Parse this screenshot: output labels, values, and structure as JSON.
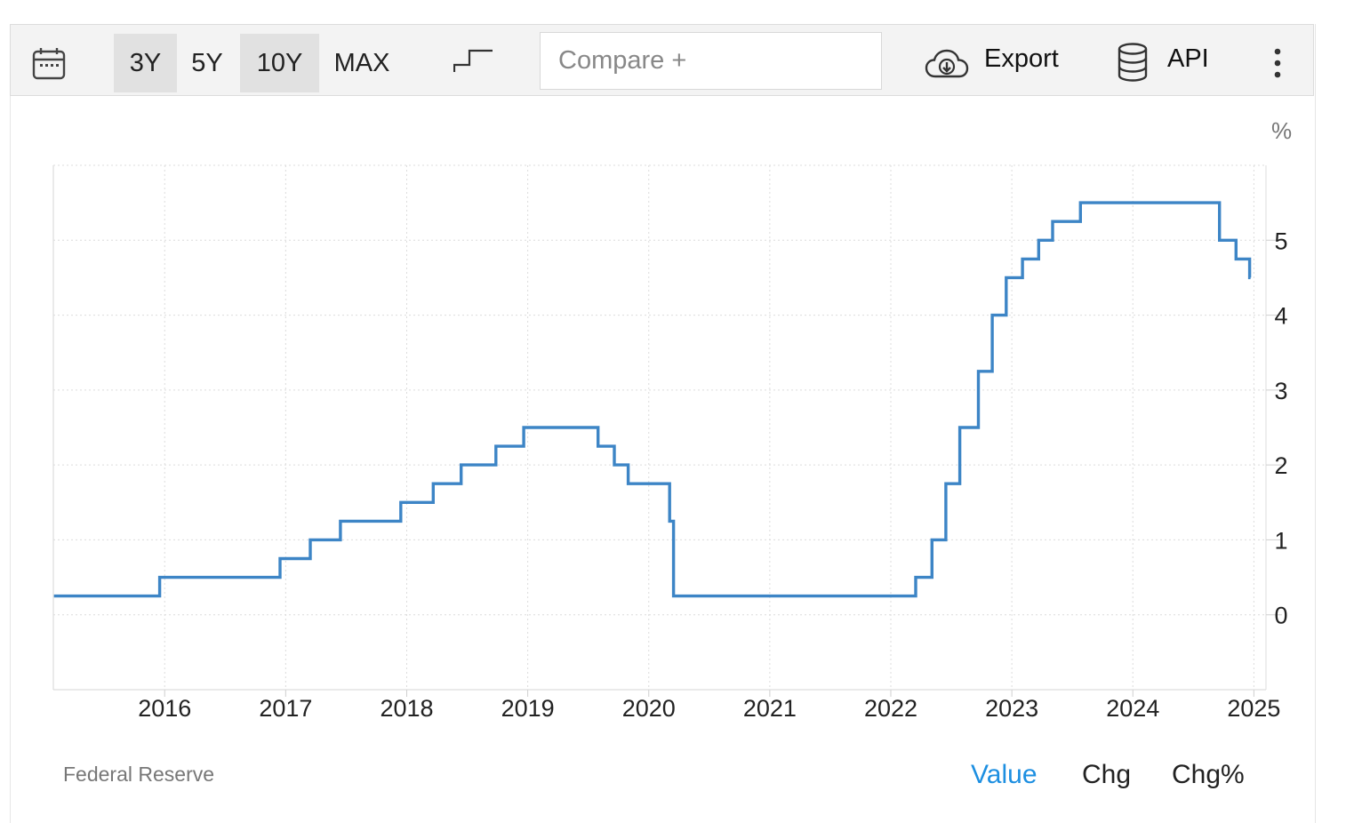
{
  "toolbar": {
    "calendar_icon": "calendar-icon",
    "ranges": [
      "3Y",
      "5Y",
      "10Y",
      "MAX"
    ],
    "active_range": "10Y",
    "chart_style_icon": "step-line-icon",
    "compare_placeholder": "Compare +",
    "export_label": "Export",
    "export_icon": "cloud-download-icon",
    "api_label": "API",
    "api_icon": "database-icon",
    "more_icon": "vertical-dots-icon"
  },
  "footer": {
    "source": "Federal Reserve",
    "modes": [
      "Value",
      "Chg",
      "Chg%"
    ],
    "active_mode": "Value",
    "active_color": "#1d8fe1"
  },
  "chart_data": {
    "type": "line",
    "style": "step",
    "title": "",
    "xlabel": "",
    "ylabel": "%",
    "line_color": "#3d85c6",
    "x_ticks": [
      "2016",
      "2017",
      "2018",
      "2019",
      "2020",
      "2021",
      "2022",
      "2023",
      "2024",
      "2025"
    ],
    "y_ticks": [
      0,
      1,
      2,
      3,
      4,
      5
    ],
    "xlim": [
      2015.08,
      2025.1
    ],
    "ylim": [
      -1,
      6
    ],
    "grid": true,
    "y_axis_side": "right",
    "series": [
      {
        "points": [
          {
            "x": "2015-02-01",
            "y": 0.25
          },
          {
            "x": "2015-12-17",
            "y": 0.5
          },
          {
            "x": "2016-12-15",
            "y": 0.75
          },
          {
            "x": "2017-03-16",
            "y": 1.0
          },
          {
            "x": "2017-06-15",
            "y": 1.25
          },
          {
            "x": "2017-12-14",
            "y": 1.5
          },
          {
            "x": "2018-03-22",
            "y": 1.75
          },
          {
            "x": "2018-06-14",
            "y": 2.0
          },
          {
            "x": "2018-09-27",
            "y": 2.25
          },
          {
            "x": "2018-12-20",
            "y": 2.5
          },
          {
            "x": "2019-08-01",
            "y": 2.25
          },
          {
            "x": "2019-09-19",
            "y": 2.0
          },
          {
            "x": "2019-10-31",
            "y": 1.75
          },
          {
            "x": "2020-03-04",
            "y": 1.25
          },
          {
            "x": "2020-03-16",
            "y": 0.25
          },
          {
            "x": "2022-03-17",
            "y": 0.5
          },
          {
            "x": "2022-05-05",
            "y": 1.0
          },
          {
            "x": "2022-06-16",
            "y": 1.75
          },
          {
            "x": "2022-07-28",
            "y": 2.5
          },
          {
            "x": "2022-09-22",
            "y": 3.25
          },
          {
            "x": "2022-11-03",
            "y": 4.0
          },
          {
            "x": "2022-12-15",
            "y": 4.5
          },
          {
            "x": "2023-02-02",
            "y": 4.75
          },
          {
            "x": "2023-03-23",
            "y": 5.0
          },
          {
            "x": "2023-05-04",
            "y": 5.25
          },
          {
            "x": "2023-07-27",
            "y": 5.5
          },
          {
            "x": "2024-09-19",
            "y": 5.0
          },
          {
            "x": "2024-11-08",
            "y": 4.75
          },
          {
            "x": "2024-12-19",
            "y": 4.5
          }
        ]
      }
    ]
  }
}
